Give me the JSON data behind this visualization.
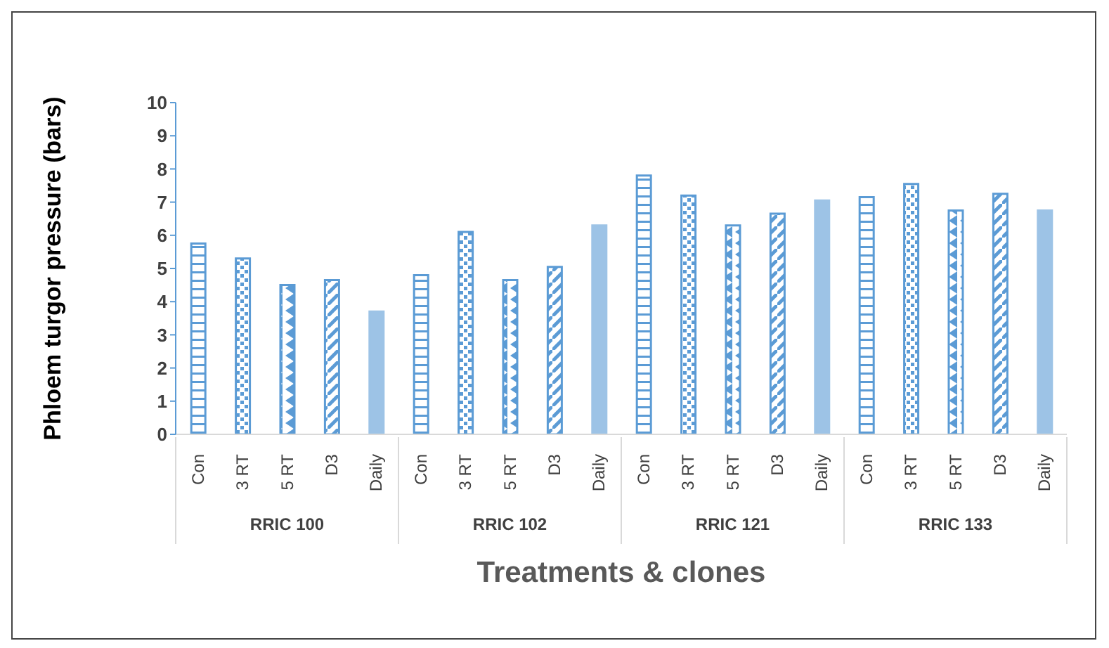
{
  "chart_data": {
    "type": "bar",
    "xlabel": "Treatments & clones",
    "ylabel": "Phloem turgor pressure (bars)",
    "categories": [
      "Con",
      "3 RT",
      "5 RT",
      "D3",
      "Daily",
      "Con",
      "3 RT",
      "5 RT",
      "D3",
      "Daily",
      "Con",
      "3 RT",
      "5 RT",
      "D3",
      "Daily",
      "Con",
      "3 RT",
      "5 RT",
      "D3",
      "Daily"
    ],
    "values": [
      5.75,
      5.3,
      4.5,
      4.65,
      3.7,
      4.8,
      6.1,
      4.65,
      5.05,
      6.3,
      7.8,
      7.2,
      6.3,
      6.65,
      7.05,
      7.15,
      7.55,
      6.75,
      7.25,
      6.75
    ],
    "colors": [
      "#5b9bd5",
      "#5b9bd5",
      "#5b9bd5",
      "#5b9bd5",
      "#9dc3e6",
      "#5b9bd5",
      "#5b9bd5",
      "#5b9bd5",
      "#5b9bd5",
      "#9dc3e6",
      "#5b9bd5",
      "#5b9bd5",
      "#5b9bd5",
      "#5b9bd5",
      "#9dc3e6",
      "#5b9bd5",
      "#5b9bd5",
      "#5b9bd5",
      "#5b9bd5",
      "#9dc3e6"
    ],
    "annotations": [
      "RRIC 100",
      "RRIC 102",
      "RRIC 121",
      "RRIC 133"
    ],
    "ylim": [
      0,
      10
    ],
    "yticks": [
      0,
      1,
      2,
      3,
      4,
      5,
      6,
      7,
      8,
      9,
      10
    ],
    "grid": false,
    "legend": false
  }
}
